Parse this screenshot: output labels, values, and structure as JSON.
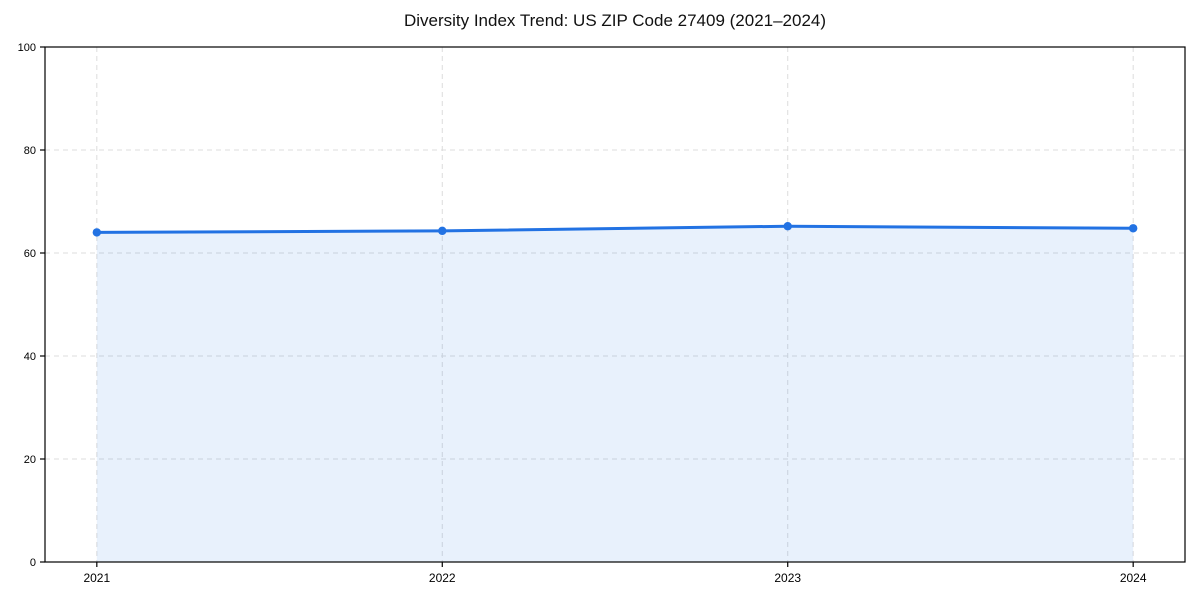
{
  "chart_data": {
    "type": "line",
    "title": "Diversity Index Trend: US ZIP Code 27409 (2021–2024)",
    "categories": [
      "2021",
      "2022",
      "2023",
      "2024"
    ],
    "values": [
      64.0,
      64.3,
      65.2,
      64.8
    ],
    "xlabel": "",
    "ylabel": "",
    "ylim": [
      0,
      100
    ],
    "yticks": [
      0,
      20,
      40,
      60,
      80,
      100
    ],
    "grid": "dashed",
    "grid_axes": "both",
    "legend_position": "none",
    "marker": "circle",
    "area_fill": true,
    "colors": {
      "line": "#2272e3",
      "marker": "#2272e3",
      "fill": "#2272e3",
      "fill_opacity": 0.1,
      "grid": "#dcdcdc",
      "axis": "#000000",
      "tick_text": "#111111"
    }
  }
}
